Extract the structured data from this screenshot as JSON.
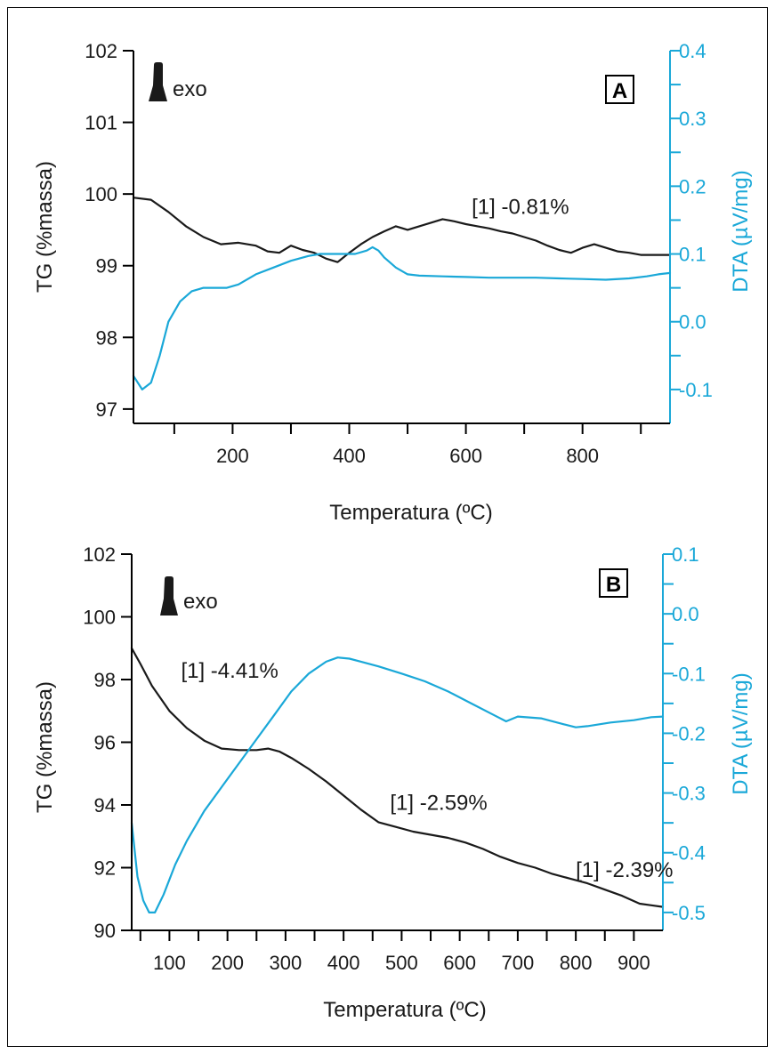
{
  "figure": {
    "frame_color": "#000000",
    "tg_color": "#1a1a1a",
    "dta_color": "#1aa8d8"
  },
  "chart_data": [
    {
      "panel": "A",
      "type": "line",
      "xlabel": "Temperatura (ºC)",
      "ylabel_left": "TG (%massa)",
      "ylabel_right": "DTA (µV/mg)",
      "xlim": [
        30,
        950
      ],
      "ylim_left": [
        96.8,
        102
      ],
      "ylim_right": [
        -0.15,
        0.4
      ],
      "x_ticks": [
        200,
        400,
        600,
        800
      ],
      "x_tick_labels": [
        "200",
        "400",
        "600",
        "800"
      ],
      "x_minor_ticks": [
        100,
        300,
        500,
        700,
        900
      ],
      "yleft_ticks": [
        97,
        98,
        99,
        100,
        101,
        102
      ],
      "yleft_tick_labels": [
        "97",
        "98",
        "99",
        "100",
        "101",
        "102"
      ],
      "yright_ticks": [
        -0.1,
        0.0,
        0.1,
        0.2,
        0.3,
        0.4
      ],
      "yright_tick_labels": [
        "-0.1",
        "0.0",
        "0.1",
        "0.2",
        "0.3",
        "0.4"
      ],
      "exo_label": "exo",
      "annotations": [
        {
          "text": "[1] -0.81%",
          "x": 610,
          "y": 99.72
        }
      ],
      "series": [
        {
          "axis": "left",
          "color": "#1a1a1a",
          "x": [
            30,
            60,
            90,
            120,
            150,
            180,
            210,
            240,
            260,
            280,
            300,
            320,
            340,
            360,
            380,
            400,
            420,
            440,
            460,
            480,
            500,
            520,
            540,
            560,
            580,
            600,
            620,
            640,
            660,
            680,
            700,
            720,
            740,
            760,
            780,
            800,
            820,
            840,
            860,
            880,
            900,
            920,
            950
          ],
          "y": [
            99.95,
            99.92,
            99.75,
            99.55,
            99.4,
            99.3,
            99.32,
            99.28,
            99.2,
            99.18,
            99.28,
            99.22,
            99.18,
            99.1,
            99.05,
            99.18,
            99.3,
            99.4,
            99.48,
            99.55,
            99.5,
            99.55,
            99.6,
            99.65,
            99.62,
            99.58,
            99.55,
            99.52,
            99.48,
            99.45,
            99.4,
            99.35,
            99.28,
            99.22,
            99.18,
            99.25,
            99.3,
            99.25,
            99.2,
            99.18,
            99.15,
            99.15,
            99.15
          ]
        },
        {
          "axis": "right",
          "color": "#1aa8d8",
          "x": [
            30,
            45,
            60,
            75,
            90,
            110,
            130,
            150,
            170,
            190,
            210,
            240,
            270,
            300,
            330,
            350,
            370,
            390,
            410,
            430,
            440,
            450,
            460,
            480,
            500,
            520,
            560,
            600,
            640,
            680,
            720,
            760,
            800,
            840,
            880,
            910,
            930,
            950
          ],
          "y": [
            -0.08,
            -0.1,
            -0.09,
            -0.05,
            0.0,
            0.03,
            0.045,
            0.05,
            0.05,
            0.05,
            0.055,
            0.07,
            0.08,
            0.09,
            0.097,
            0.1,
            0.1,
            0.1,
            0.1,
            0.105,
            0.11,
            0.105,
            0.095,
            0.08,
            0.07,
            0.068,
            0.067,
            0.066,
            0.065,
            0.065,
            0.065,
            0.064,
            0.063,
            0.062,
            0.064,
            0.067,
            0.07,
            0.072
          ]
        }
      ]
    },
    {
      "panel": "B",
      "type": "line",
      "xlabel": "Temperatura (ºC)",
      "ylabel_left": "TG (%massa)",
      "ylabel_right": "DTA (µV/mg)",
      "xlim": [
        35,
        950
      ],
      "ylim_left": [
        90,
        102
      ],
      "ylim_right": [
        -0.53,
        0.1
      ],
      "x_ticks": [
        100,
        200,
        300,
        400,
        500,
        600,
        700,
        800,
        900
      ],
      "x_tick_labels": [
        "100",
        "200",
        "300",
        "400",
        "500",
        "600",
        "700",
        "800",
        "900"
      ],
      "yleft_ticks": [
        90,
        92,
        94,
        96,
        98,
        100,
        102
      ],
      "yleft_tick_labels": [
        "90",
        "92",
        "94",
        "96",
        "98",
        "100",
        "102"
      ],
      "yright_ticks": [
        -0.5,
        -0.4,
        -0.3,
        -0.2,
        -0.1,
        0.0,
        0.1
      ],
      "yright_tick_labels": [
        "-0.5",
        "-0.4",
        "-0.3",
        "-0.2",
        "-0.1",
        "0.0",
        "0.1"
      ],
      "exo_label": "exo",
      "annotations": [
        {
          "text": "[1] -4.41%",
          "x": 120,
          "y": 98.05
        },
        {
          "text": "[1] -2.59%",
          "x": 480,
          "y": 93.85
        },
        {
          "text": "[1] -2.39%",
          "x": 800,
          "y": 91.7
        }
      ],
      "series": [
        {
          "axis": "left",
          "color": "#1a1a1a",
          "x": [
            35,
            50,
            70,
            100,
            130,
            160,
            190,
            220,
            250,
            270,
            290,
            310,
            340,
            370,
            400,
            430,
            460,
            490,
            520,
            550,
            580,
            610,
            640,
            670,
            700,
            730,
            760,
            790,
            820,
            850,
            880,
            910,
            930,
            950
          ],
          "y": [
            99.0,
            98.5,
            97.8,
            97.0,
            96.45,
            96.05,
            95.8,
            95.75,
            95.75,
            95.8,
            95.7,
            95.5,
            95.15,
            94.75,
            94.3,
            93.85,
            93.45,
            93.3,
            93.15,
            93.05,
            92.95,
            92.8,
            92.6,
            92.35,
            92.15,
            92.0,
            91.8,
            91.65,
            91.5,
            91.3,
            91.1,
            90.85,
            90.8,
            90.75
          ]
        },
        {
          "axis": "right",
          "color": "#1aa8d8",
          "x": [
            35,
            45,
            55,
            65,
            75,
            90,
            110,
            130,
            160,
            190,
            220,
            250,
            280,
            310,
            340,
            370,
            390,
            410,
            430,
            460,
            500,
            540,
            580,
            620,
            660,
            680,
            700,
            740,
            780,
            800,
            820,
            860,
            900,
            930,
            950
          ],
          "y": [
            -0.35,
            -0.44,
            -0.48,
            -0.5,
            -0.5,
            -0.47,
            -0.42,
            -0.38,
            -0.33,
            -0.29,
            -0.25,
            -0.21,
            -0.17,
            -0.13,
            -0.1,
            -0.08,
            -0.073,
            -0.075,
            -0.08,
            -0.088,
            -0.1,
            -0.113,
            -0.13,
            -0.15,
            -0.17,
            -0.18,
            -0.172,
            -0.175,
            -0.185,
            -0.19,
            -0.188,
            -0.182,
            -0.178,
            -0.173,
            -0.172
          ]
        }
      ]
    }
  ]
}
